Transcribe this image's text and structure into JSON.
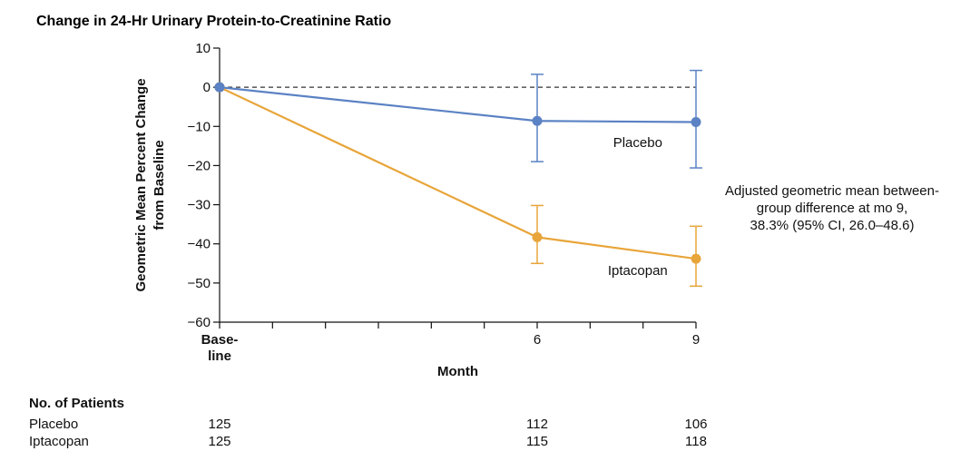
{
  "chart_data": {
    "type": "line",
    "title": "Change in 24-Hr Urinary Protein-to-Creatinine Ratio",
    "ylabel": [
      "Geometric Mean Percent Change",
      "from Baseline"
    ],
    "xlabel": "Month",
    "ylim": [
      -60,
      10
    ],
    "yticks": [
      10,
      0,
      -10,
      -20,
      -30,
      -40,
      -50,
      -60
    ],
    "ytick_labels": [
      "10",
      "0",
      "−10",
      "−20",
      "−30",
      "−40",
      "−50",
      "−60"
    ],
    "xlim": [
      0,
      9
    ],
    "xticks_minor": [
      0,
      1,
      2,
      3,
      4,
      5,
      6,
      7,
      8,
      9
    ],
    "xtick_labels": [
      {
        "x": 0,
        "lines": [
          "Base-",
          "line"
        ],
        "bold": true
      },
      {
        "x": 6,
        "lines": [
          "6"
        ],
        "bold": false
      },
      {
        "x": 9,
        "lines": [
          "9"
        ],
        "bold": false
      }
    ],
    "reference_line": {
      "y": 0,
      "style": "dashed"
    },
    "series": [
      {
        "name": "Placebo",
        "color": "#5b82c4",
        "x": [
          0,
          6,
          9
        ],
        "y": [
          0,
          -8.6,
          -8.9
        ],
        "ci_low": [
          null,
          -19.0,
          -20.6
        ],
        "ci_high": [
          null,
          3.3,
          4.3
        ],
        "label": "Placebo"
      },
      {
        "name": "Iptacopan",
        "color": "#e8a53a",
        "x": [
          0,
          6,
          9
        ],
        "y": [
          0,
          -38.3,
          -43.8
        ],
        "ci_low": [
          null,
          -45.0,
          -50.8
        ],
        "ci_high": [
          null,
          -30.2,
          -35.5
        ],
        "label": "Iptacopan"
      }
    ],
    "annotation": [
      "Adjusted geometric mean between-",
      "group difference at mo 9,",
      "38.3% (95% CI, 26.0–48.6)"
    ]
  },
  "patients": {
    "heading": "No. of Patients",
    "rows": [
      {
        "label": "Placebo",
        "values": [
          "125",
          "112",
          "106"
        ]
      },
      {
        "label": "Iptacopan",
        "values": [
          "125",
          "115",
          "118"
        ]
      }
    ],
    "x": [
      0,
      6,
      9
    ]
  }
}
